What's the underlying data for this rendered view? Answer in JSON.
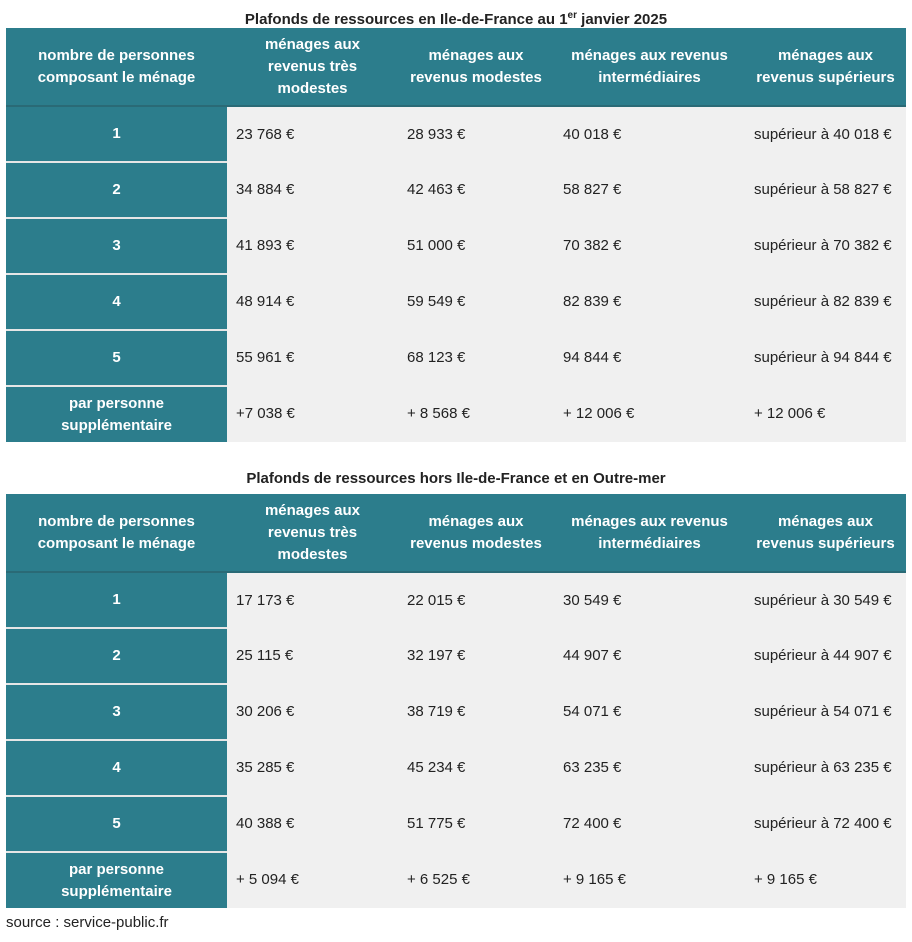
{
  "table1": {
    "title_main": "Plafonds de ressources en Ile-de-France au 1",
    "title_sup": "er",
    "title_end": " janvier 2025",
    "headers": [
      "nombre de personnes composant le ménage",
      "ménages aux revenus très modestes",
      "ménages aux revenus modestes",
      "ménages aux revenus intermédiaires",
      "ménages aux revenus supérieurs"
    ],
    "rows": [
      {
        "label": "1",
        "cells": [
          "23 768 €",
          "28 933 €",
          "40 018 €",
          "supérieur à 40 018 €"
        ]
      },
      {
        "label": "2",
        "cells": [
          "34 884 €",
          "42 463 €",
          "58 827 €",
          "supérieur à 58 827 €"
        ]
      },
      {
        "label": "3",
        "cells": [
          "41 893 €",
          "51 000 €",
          "70 382 €",
          "supérieur à 70 382 €"
        ]
      },
      {
        "label": "4",
        "cells": [
          "48 914 €",
          "59 549 €",
          "82 839 €",
          "supérieur à 82 839 €"
        ]
      },
      {
        "label": "5",
        "cells": [
          "55 961 €",
          "68 123 €",
          "94 844 €",
          "supérieur à 94 844 €"
        ]
      },
      {
        "label": "par personne supplémentaire",
        "cells": [
          "+7 038 €",
          "+ 8 568 €",
          "+ 12 006 €",
          "+ 12 006 €"
        ]
      }
    ]
  },
  "table2": {
    "title": "Plafonds de ressources hors Ile-de-France et en Outre-mer",
    "headers": [
      "nombre de personnes composant le ménage",
      "ménages aux revenus très modestes",
      "ménages aux revenus modestes",
      "ménages aux revenus intermédiaires",
      "ménages aux revenus supérieurs"
    ],
    "rows": [
      {
        "label": "1",
        "cells": [
          "17 173 €",
          "22 015 €",
          "30 549 €",
          "supérieur à 30 549 €"
        ]
      },
      {
        "label": "2",
        "cells": [
          "25 115 €",
          "32 197 €",
          "44 907 €",
          "supérieur à 44 907 €"
        ]
      },
      {
        "label": "3",
        "cells": [
          "30 206 €",
          "38 719 €",
          "54 071 €",
          "supérieur à 54 071 €"
        ]
      },
      {
        "label": "4",
        "cells": [
          "35 285 €",
          "45 234 €",
          "63 235 €",
          "supérieur à 63 235 €"
        ]
      },
      {
        "label": "5",
        "cells": [
          "40 388 €",
          "51 775 €",
          "72 400 €",
          "supérieur à 72 400 €"
        ]
      },
      {
        "label": "par personne supplémentaire",
        "cells": [
          "+ 5 094 €",
          "+ 6 525 €",
          "+ 9 165 €",
          "+ 9 165 €"
        ]
      }
    ]
  },
  "source": "source : service-public.fr",
  "colors": {
    "header_teal": "#2c7d8c",
    "cell_grey": "#f0f0f0",
    "text": "#222222"
  }
}
